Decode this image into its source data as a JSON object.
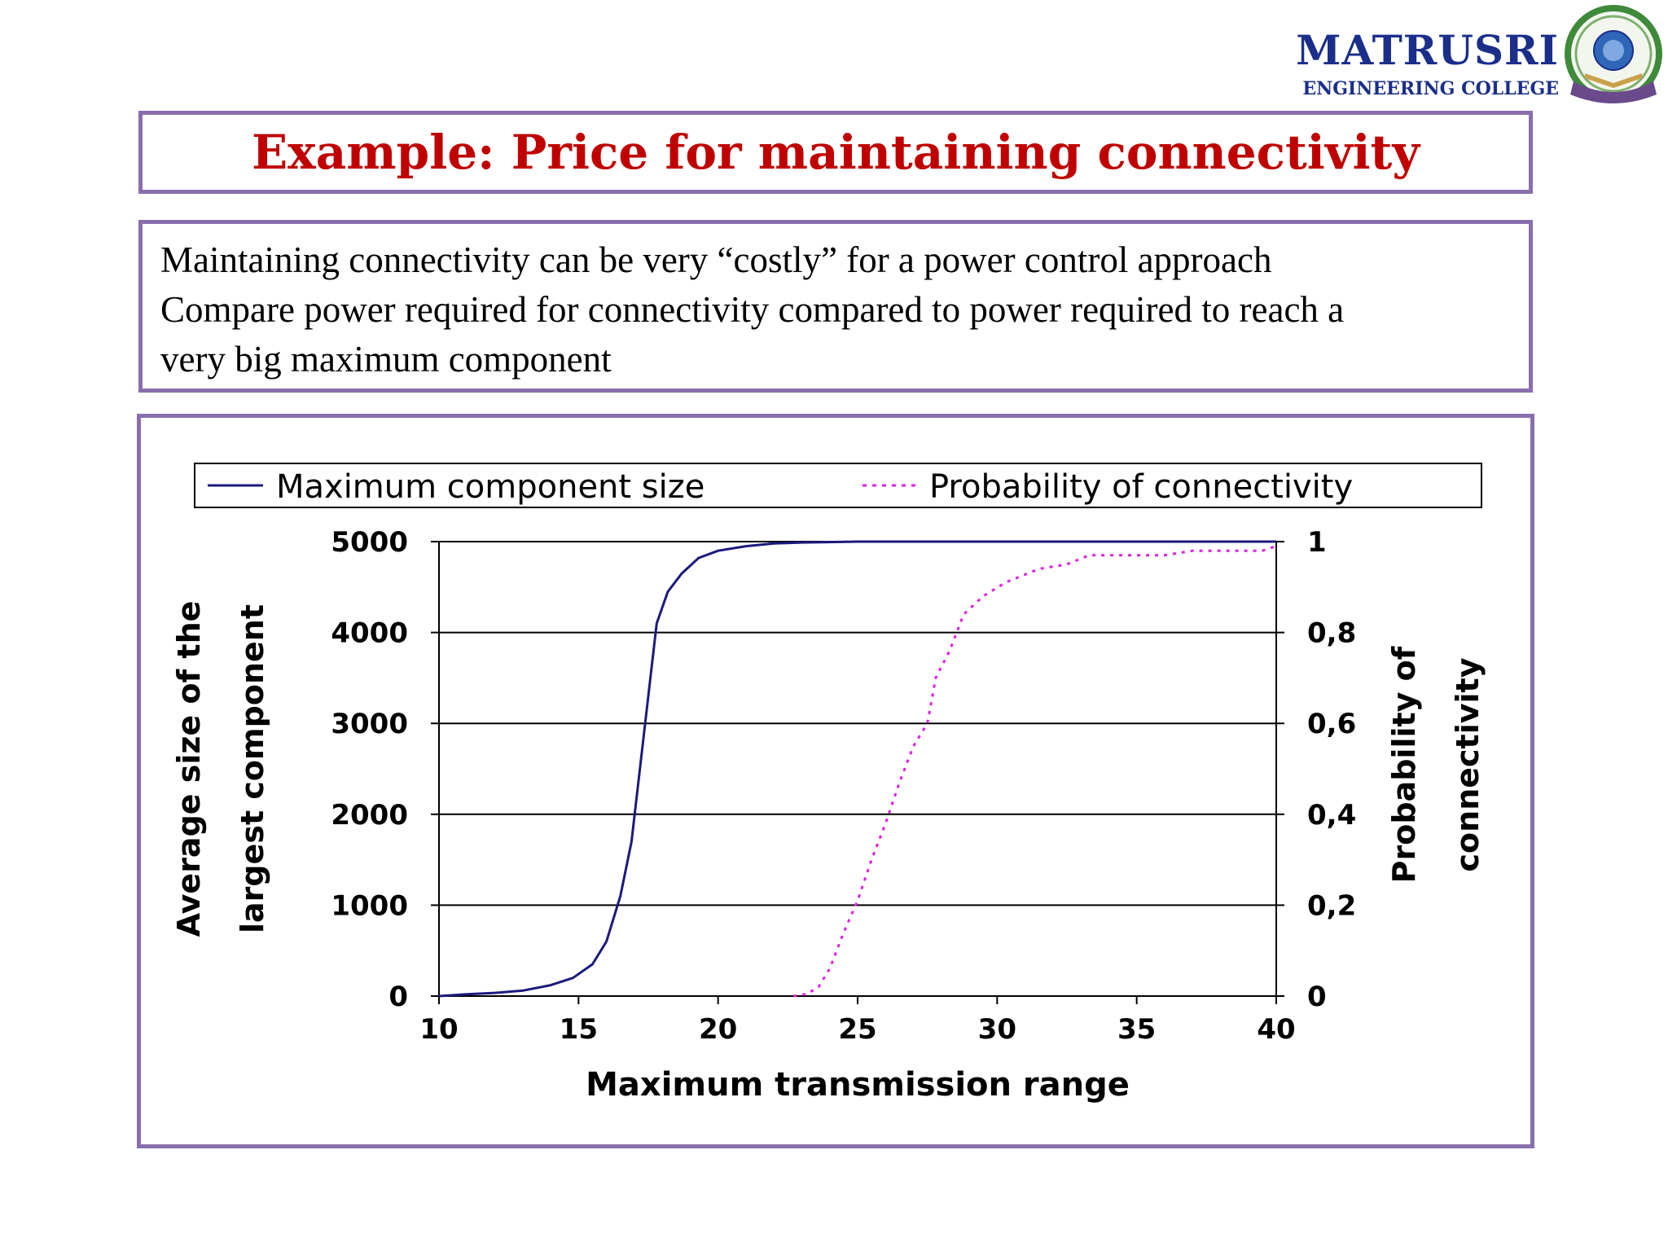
{
  "logo": {
    "name": "MATRUSRI",
    "subtitle": "ENGINEERING COLLEGE"
  },
  "slide": {
    "title": "Example: Price for maintaining connectivity",
    "body_lines": [
      "Maintaining connectivity can be very “costly” for a power control approach",
      "Compare power required for connectivity compared to power required to reach a",
      "very big maximum component"
    ]
  },
  "colors": {
    "title": "#c00000",
    "frame": "#8a6fad",
    "series_component": "#1a1a7e",
    "series_connectivity": "#e020e0",
    "logo": "#1a2e8a"
  },
  "chart_data": {
    "type": "line",
    "xlabel": "Maximum transmission range",
    "ylabel_left": "Average size of the largest component",
    "ylabel_right": "Probability of connectivity",
    "xlim": [
      10,
      40
    ],
    "ylim_left": [
      0,
      5000
    ],
    "ylim_right": [
      0,
      1
    ],
    "x_ticks": [
      "10",
      "15",
      "20",
      "25",
      "30",
      "35",
      "40"
    ],
    "y_left_ticks": [
      "0",
      "1000",
      "2000",
      "3000",
      "4000",
      "5000"
    ],
    "y_right_ticks": [
      "0",
      "0,2",
      "0,4",
      "0,6",
      "0,8",
      "1"
    ],
    "grid": "horizontal",
    "legend_position": "top",
    "series": [
      {
        "name": "Maximum component size",
        "axis": "left",
        "style": "solid",
        "points": [
          [
            10,
            0
          ],
          [
            11,
            20
          ],
          [
            12,
            35
          ],
          [
            13,
            60
          ],
          [
            14,
            120
          ],
          [
            14.8,
            200
          ],
          [
            15.5,
            350
          ],
          [
            16,
            600
          ],
          [
            16.5,
            1100
          ],
          [
            16.9,
            1700
          ],
          [
            17.2,
            2500
          ],
          [
            17.5,
            3300
          ],
          [
            17.8,
            4100
          ],
          [
            18.2,
            4450
          ],
          [
            18.7,
            4650
          ],
          [
            19.3,
            4820
          ],
          [
            20,
            4900
          ],
          [
            21,
            4950
          ],
          [
            22,
            4980
          ],
          [
            23,
            4990
          ],
          [
            25,
            5000
          ],
          [
            30,
            5000
          ],
          [
            35,
            5000
          ],
          [
            40,
            5000
          ]
        ]
      },
      {
        "name": "Probability of connectivity",
        "axis": "right",
        "style": "dotted",
        "points": [
          [
            22.7,
            0
          ],
          [
            23.2,
            0.005
          ],
          [
            23.6,
            0.02
          ],
          [
            24,
            0.06
          ],
          [
            24.5,
            0.14
          ],
          [
            25,
            0.21
          ],
          [
            25.5,
            0.3
          ],
          [
            26,
            0.38
          ],
          [
            26.5,
            0.47
          ],
          [
            27,
            0.55
          ],
          [
            27.5,
            0.6
          ],
          [
            27.8,
            0.7
          ],
          [
            28.3,
            0.76
          ],
          [
            28.8,
            0.84
          ],
          [
            29.5,
            0.88
          ],
          [
            30.3,
            0.91
          ],
          [
            31.5,
            0.94
          ],
          [
            32.5,
            0.95
          ],
          [
            33.3,
            0.97
          ],
          [
            34,
            0.97
          ],
          [
            35,
            0.97
          ],
          [
            36,
            0.97
          ],
          [
            37,
            0.98
          ],
          [
            38,
            0.98
          ],
          [
            39.5,
            0.98
          ],
          [
            40,
            0.99
          ]
        ]
      }
    ]
  }
}
